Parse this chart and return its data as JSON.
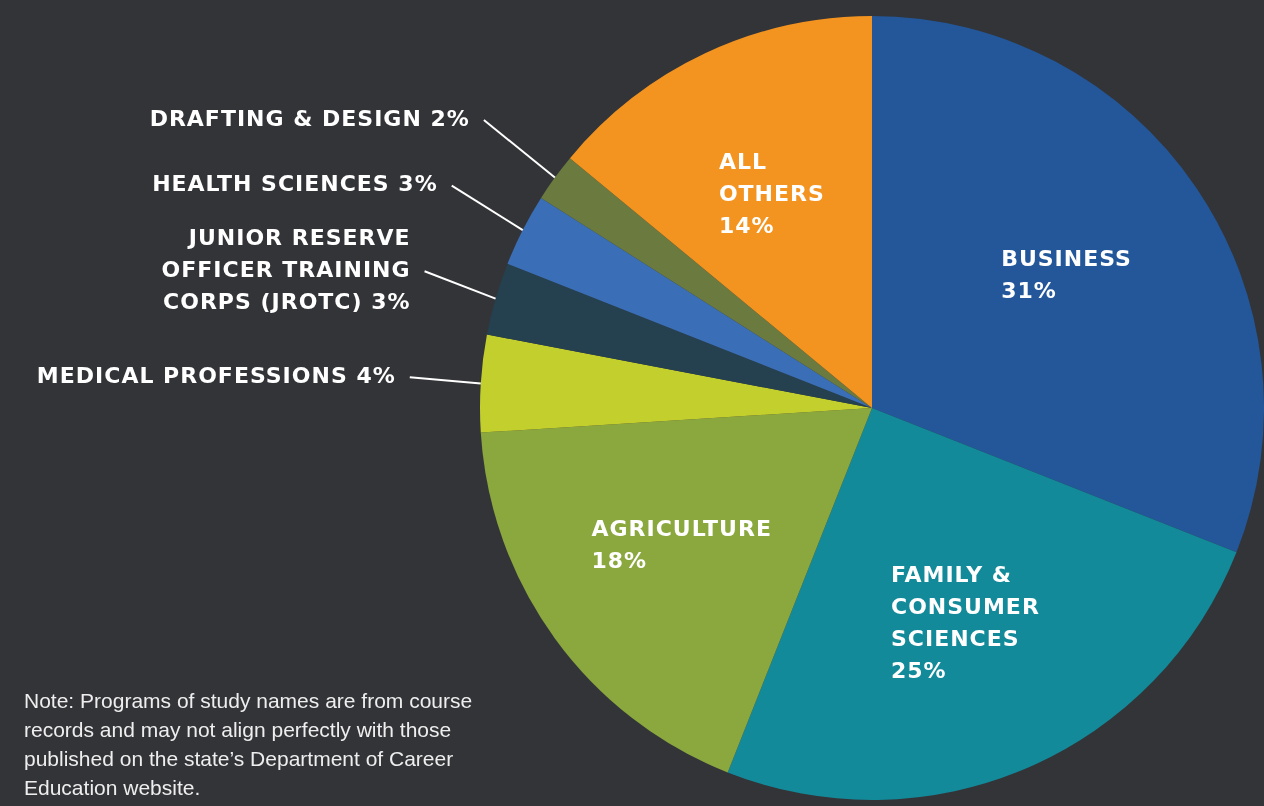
{
  "chart_data": {
    "type": "pie",
    "categories": [
      "BUSINESS",
      "FAMILY & CONSUMER SCIENCES",
      "AGRICULTURE",
      "MEDICAL PROFESSIONS",
      "JUNIOR RESERVE OFFICER TRAINING CORPS (JROTC)",
      "HEALTH SCIENCES",
      "DRAFTING & DESIGN",
      "ALL OTHERS"
    ],
    "values": [
      31,
      25,
      18,
      4,
      3,
      3,
      2,
      14
    ],
    "value_labels": [
      "31%",
      "25%",
      "18%",
      "4%",
      "3%",
      "3%",
      "2%",
      "14%"
    ],
    "colors": [
      "#23579a",
      "#138a9a",
      "#8aa83e",
      "#c3cf2d",
      "#25404f",
      "#3a6fb7",
      "#6b7a3f",
      "#f39420"
    ],
    "legend": false,
    "annotations": [
      "Note:  Programs of study names are from course records and may not align perfectly with those published on the state’s Department of Career Education website."
    ]
  }
}
